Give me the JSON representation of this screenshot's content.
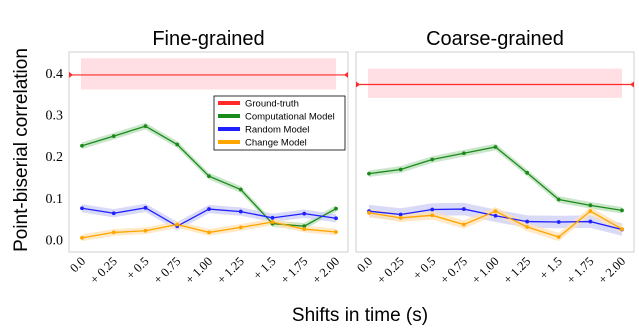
{
  "figure": {
    "ylabel": "Point-biserial correlation",
    "xlabel": "Shifts in time (s)"
  },
  "colors": {
    "Ground-truth": "#ff2a2a",
    "Computational Model": "#1a8a1a",
    "Random Model": "#1f1fff",
    "Change Model": "#ffa500",
    "band_ground": "#ffdfe3",
    "band_green": "#b9dfb9",
    "band_blue": "#cccdf5",
    "band_orange": "#ffe2b3"
  },
  "chart_data": [
    {
      "type": "line",
      "title": "Fine-grained",
      "x": [
        "0.0",
        "+ 0.25",
        "+ 0.5",
        "+ 0.75",
        "+ 1.00",
        "+ 1.25",
        "+ 1.5",
        "+ 1.75",
        "+ 2.00"
      ],
      "ylim": [
        -0.03,
        0.45
      ],
      "yticks": [
        "0.0",
        "0.1",
        "0.2",
        "0.3",
        "0.4"
      ],
      "ground_truth": {
        "value": 0.395,
        "band": [
          0.36,
          0.435
        ]
      },
      "legend": [
        "Ground-truth",
        "Computational Model",
        "Random Model",
        "Change Model"
      ],
      "legend_position": "center-right",
      "series": [
        {
          "name": "Computational Model",
          "values": [
            0.225,
            0.248,
            0.272,
            0.228,
            0.152,
            0.12,
            0.038,
            0.032,
            0.074
          ],
          "band": 0.008
        },
        {
          "name": "Random Model",
          "values": [
            0.075,
            0.063,
            0.076,
            0.032,
            0.073,
            0.067,
            0.052,
            0.062,
            0.051
          ],
          "band": 0.01
        },
        {
          "name": "Change Model",
          "values": [
            0.004,
            0.017,
            0.021,
            0.036,
            0.017,
            0.029,
            0.042,
            0.025,
            0.018
          ],
          "band": 0.008
        }
      ]
    },
    {
      "type": "line",
      "title": "Coarse-grained",
      "x": [
        "0.0",
        "+ 0.25",
        "+ 0.5",
        "+ 0.75",
        "+ 1.00",
        "+ 1.25",
        "+ 1.5",
        "+ 1.75",
        "+ 2.00"
      ],
      "ylim": [
        -0.03,
        0.45
      ],
      "ground_truth": {
        "value": 0.372,
        "band": [
          0.34,
          0.41
        ]
      },
      "series": [
        {
          "name": "Computational Model",
          "values": [
            0.158,
            0.168,
            0.192,
            0.207,
            0.222,
            0.16,
            0.096,
            0.082,
            0.07
          ],
          "band": 0.008
        },
        {
          "name": "Random Model",
          "values": [
            0.068,
            0.06,
            0.072,
            0.073,
            0.057,
            0.043,
            0.042,
            0.043,
            0.024
          ],
          "band": 0.015
        },
        {
          "name": "Change Model",
          "values": [
            0.064,
            0.052,
            0.058,
            0.036,
            0.068,
            0.03,
            0.006,
            0.068,
            0.025
          ],
          "band": 0.01
        }
      ]
    }
  ]
}
